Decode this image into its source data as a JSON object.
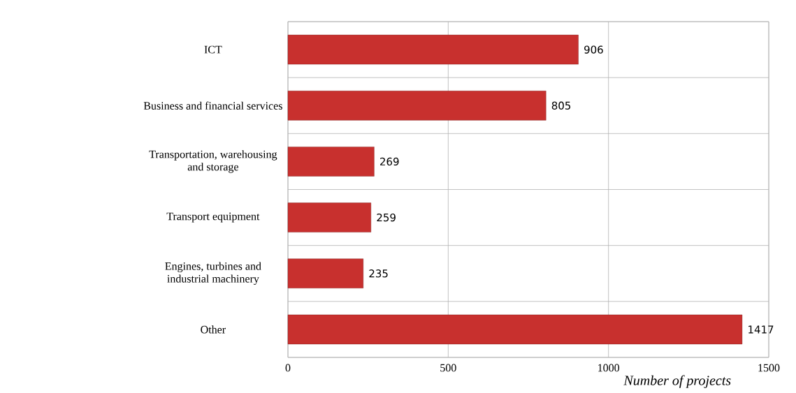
{
  "chart_data": {
    "type": "bar",
    "orientation": "horizontal",
    "xlabel": "Number of projects",
    "categories": [
      "ICT",
      "Business and financial services",
      "Transportation, warehousing and storage",
      "Transport equipment",
      "Engines, turbines and industrial machinery",
      "Other"
    ],
    "values": [
      906,
      805,
      269,
      259,
      235,
      1417
    ],
    "color": "#c8302e",
    "xlim": [
      0,
      1500
    ],
    "xticks": [
      0,
      500,
      1000,
      1500
    ],
    "grid": true,
    "data_labels": true
  }
}
